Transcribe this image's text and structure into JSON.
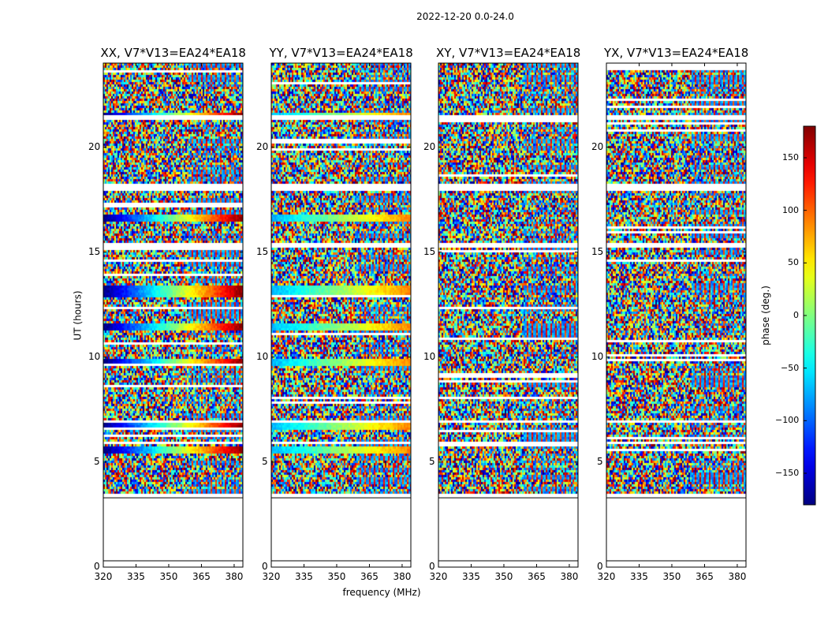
{
  "suptitle": "2022-12-20 0.0-24.0",
  "chart_data": {
    "type": "heatmap",
    "panels": [
      {
        "title": "XX, V7*V13=EA24*EA18",
        "polarization": "XX",
        "baseline": "V7*V13=EA24*EA18"
      },
      {
        "title": "YY, V7*V13=EA24*EA18",
        "polarization": "YY",
        "baseline": "V7*V13=EA24*EA18"
      },
      {
        "title": "XY, V7*V13=EA24*EA18",
        "polarization": "XY",
        "baseline": "V7*V13=EA24*EA18"
      },
      {
        "title": "YX, V7*V13=EA24*EA18",
        "polarization": "YX",
        "baseline": "V7*V13=EA24*EA18"
      }
    ],
    "xlabel": "frequency (MHz)",
    "ylabel": "UT (hours)",
    "xlim": [
      320,
      384
    ],
    "ylim": [
      0,
      24
    ],
    "xticks": [
      "320",
      "335",
      "350",
      "365",
      "380"
    ],
    "yticks": [
      "0",
      "5",
      "10",
      "15",
      "20"
    ],
    "colorbar": {
      "label": "phase (deg.)",
      "range": [
        -180,
        180
      ],
      "ticks": [
        "150",
        "100",
        "50",
        "0",
        "−50",
        "−100",
        "−150"
      ],
      "colormap": "jet"
    },
    "data_time_range_hours": [
      3.6,
      24.0
    ],
    "flagged_gaps_hours": [
      [
        0.3,
        3.6
      ],
      [
        21.3,
        21.6
      ],
      [
        18.0,
        18.3
      ],
      [
        15.3,
        15.45
      ],
      [
        6.9,
        7.05
      ],
      [
        5.9,
        6.05
      ]
    ]
  }
}
